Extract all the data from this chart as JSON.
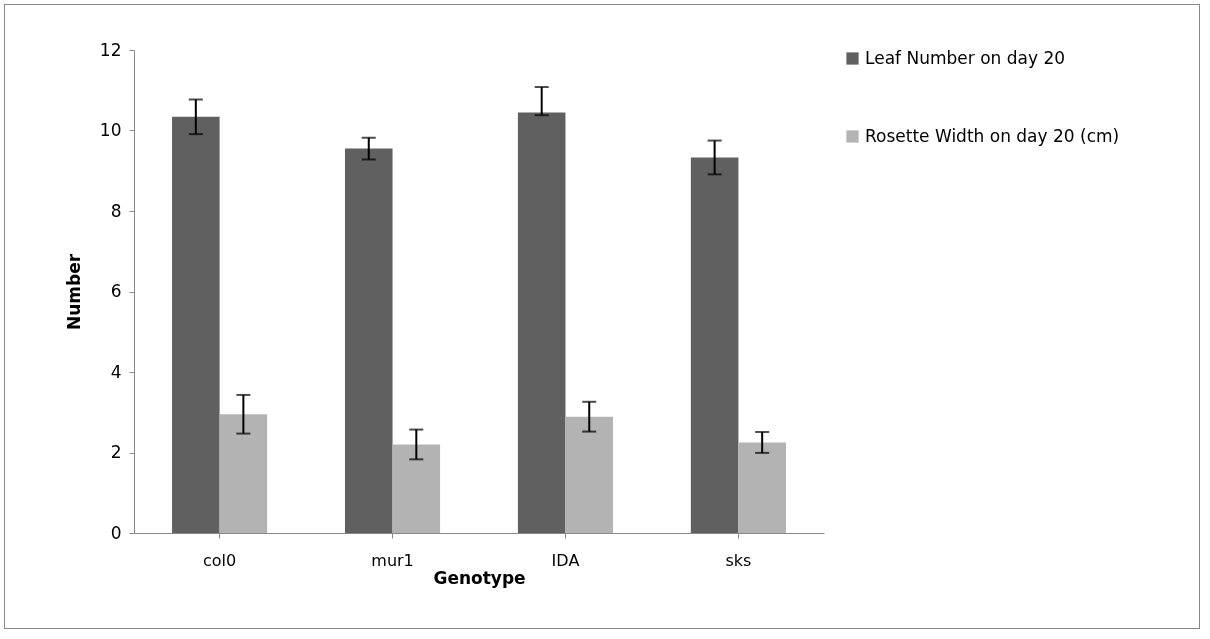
{
  "chart_data": {
    "type": "bar",
    "xlabel": "Genotype",
    "ylabel": "Number",
    "categories": [
      "col0",
      "mur1",
      "IDA",
      "sks"
    ],
    "series": [
      {
        "name": "Leaf Number on day 20",
        "color": "#606060",
        "values": [
          10.34,
          9.55,
          10.45,
          9.33
        ],
        "errors": [
          0.43,
          0.27,
          [
            10.38,
            11.08
          ],
          0.42
        ]
      },
      {
        "name": "Rosette Width on day 20 (cm)",
        "color": "#b3b3b3",
        "values": [
          2.95,
          2.2,
          2.89,
          2.25
        ],
        "errors": [
          0.48,
          0.37,
          0.37,
          0.26
        ]
      }
    ],
    "ylim": [
      0,
      12
    ],
    "yticks": [
      0,
      2,
      4,
      6,
      8,
      10,
      12
    ],
    "grid": false,
    "legend": "right"
  }
}
